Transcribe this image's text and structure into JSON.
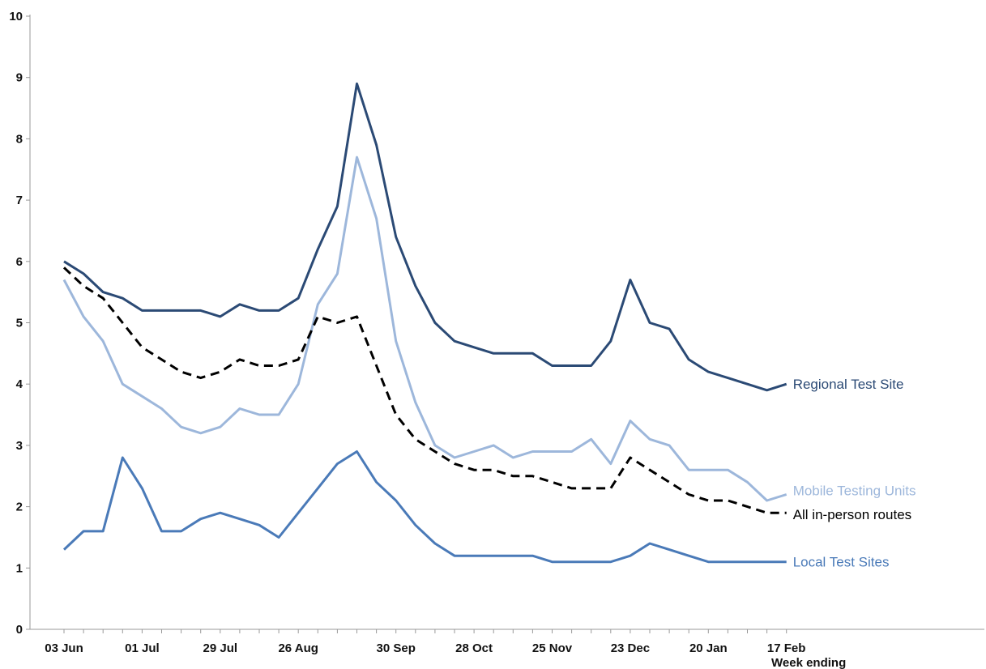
{
  "chart_data": {
    "type": "line",
    "title": "",
    "xlabel": "Week ending",
    "ylabel": "",
    "ylim": [
      0,
      10
    ],
    "yticks": [
      "0",
      "1",
      "2",
      "3",
      "4",
      "5",
      "6",
      "7",
      "8",
      "9",
      "10"
    ],
    "x_tick_labels": [
      {
        "index": 0,
        "label": "03 Jun"
      },
      {
        "index": 4,
        "label": "01 Jul"
      },
      {
        "index": 8,
        "label": "29 Jul"
      },
      {
        "index": 12,
        "label": "26 Aug"
      },
      {
        "index": 17,
        "label": "30 Sep"
      },
      {
        "index": 21,
        "label": "28 Oct"
      },
      {
        "index": 25,
        "label": "25 Nov"
      },
      {
        "index": 29,
        "label": "23 Dec"
      },
      {
        "index": 33,
        "label": "20 Jan"
      },
      {
        "index": 37,
        "label": "17 Feb"
      }
    ],
    "grid": false,
    "legend": "direct labels at line ends",
    "series": [
      {
        "name": "Regional Test Site",
        "color": "#2b4a75",
        "style": "solid",
        "values": [
          6.0,
          5.8,
          5.5,
          5.4,
          5.2,
          5.2,
          5.2,
          5.2,
          5.1,
          5.3,
          5.2,
          5.2,
          5.4,
          6.2,
          6.9,
          8.9,
          7.9,
          6.4,
          5.6,
          5.0,
          4.7,
          4.6,
          4.5,
          4.5,
          4.5,
          4.3,
          4.3,
          4.3,
          4.7,
          5.7,
          5.0,
          4.9,
          4.4,
          4.2,
          4.1,
          4.0,
          3.9,
          4.0
        ]
      },
      {
        "name": "Mobile Testing Units",
        "color": "#9db7db",
        "style": "solid",
        "values": [
          5.7,
          5.1,
          4.7,
          4.0,
          3.8,
          3.6,
          3.3,
          3.2,
          3.3,
          3.6,
          3.5,
          3.5,
          4.0,
          5.3,
          5.8,
          7.7,
          6.7,
          4.7,
          3.7,
          3.0,
          2.8,
          2.9,
          3.0,
          2.8,
          2.9,
          2.9,
          2.9,
          3.1,
          2.7,
          3.4,
          3.1,
          3.0,
          2.6,
          2.6,
          2.6,
          2.4,
          2.1,
          2.2
        ]
      },
      {
        "name": "All in-person routes",
        "color": "#000000",
        "style": "dashed",
        "values": [
          5.9,
          5.6,
          5.4,
          5.0,
          4.6,
          4.4,
          4.2,
          4.1,
          4.2,
          4.4,
          4.3,
          4.3,
          4.4,
          5.1,
          5.0,
          5.1,
          4.3,
          3.5,
          3.1,
          2.9,
          2.7,
          2.6,
          2.6,
          2.5,
          2.5,
          2.4,
          2.3,
          2.3,
          2.3,
          2.8,
          2.6,
          2.4,
          2.2,
          2.1,
          2.1,
          2.0,
          1.9,
          1.9
        ]
      },
      {
        "name": "Local Test Sites",
        "color": "#4a7ab8",
        "style": "solid",
        "values": [
          1.3,
          1.6,
          1.6,
          2.8,
          2.3,
          1.6,
          1.6,
          1.8,
          1.9,
          1.8,
          1.7,
          1.5,
          1.9,
          2.3,
          2.7,
          2.9,
          2.4,
          2.1,
          1.7,
          1.4,
          1.2,
          1.2,
          1.2,
          1.2,
          1.2,
          1.1,
          1.1,
          1.1,
          1.1,
          1.2,
          1.4,
          1.3,
          1.2,
          1.1,
          1.1,
          1.1,
          1.1,
          1.1
        ]
      }
    ]
  }
}
